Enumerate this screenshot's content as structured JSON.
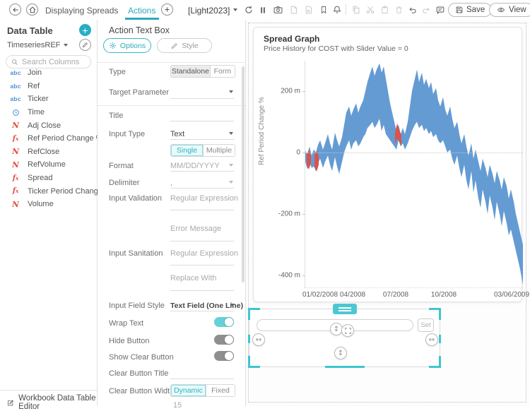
{
  "toolbar": {
    "workbook_title": "Displaying Spreads",
    "active_tab": "Actions",
    "theme": "[Light2023]",
    "save_label": "Save",
    "view_label": "View"
  },
  "sidebar": {
    "title": "Data Table",
    "table_name": "TimeseriesREF",
    "search_placeholder": "Search Columns",
    "columns": [
      {
        "type": "text",
        "label": "Join"
      },
      {
        "type": "text",
        "label": "Ref"
      },
      {
        "type": "text",
        "label": "Ticker"
      },
      {
        "type": "time",
        "label": "Time"
      },
      {
        "type": "numeric",
        "label": "Adj Close"
      },
      {
        "type": "calc",
        "label": "Ref Period Change %"
      },
      {
        "type": "numeric",
        "label": "RefClose"
      },
      {
        "type": "numeric",
        "label": "RefVolume"
      },
      {
        "type": "calc",
        "label": "Spread"
      },
      {
        "type": "calc",
        "label": "Ticker Period Change %"
      },
      {
        "type": "numeric",
        "label": "Volume"
      }
    ],
    "footer_link": "Workbook Data Table Editor"
  },
  "inspector": {
    "title": "Action Text Box",
    "tabs": {
      "options": "Options",
      "style": "Style"
    },
    "fields": {
      "type_label": "Type",
      "type_options": [
        "Standalone",
        "Form"
      ],
      "type_selected": "Standalone",
      "target_parameter_label": "Target Parameter",
      "title_label": "Title",
      "input_type_label": "Input Type",
      "input_type_value": "Text",
      "input_mode_options": [
        "Single",
        "Multiple"
      ],
      "input_mode_selected": "Single",
      "format_label": "Format",
      "format_value": "MM/DD/YYYY",
      "delimiter_label": "Delimiter",
      "delimiter_value": ",",
      "input_validation_label": "Input Validation",
      "regex_placeholder": "Regular Expression",
      "error_message_placeholder": "Error Message",
      "input_sanitation_label": "Input Sanitation",
      "replace_with_placeholder": "Replace With",
      "input_field_style_label": "Input Field Style",
      "input_field_style_value": "Text Field (One Line)",
      "wrap_text_label": "Wrap Text",
      "wrap_text_on": true,
      "hide_button_label": "Hide Button",
      "hide_button_on": false,
      "show_clear_button_label": "Show Clear Button",
      "show_clear_button_on": false,
      "clear_button_title_label": "Clear Button Title",
      "clear_button_width_label": "Clear Button Width",
      "clear_button_width_options": [
        "Dynamic",
        "Fixed"
      ],
      "clear_button_width_selected": "Dynamic",
      "clear_button_width_value": "15"
    },
    "accent_color": "#2fa8bc"
  },
  "canvas": {
    "widget": {
      "set_label": "Set",
      "input_value": "",
      "selection_color": "#3ec6d1"
    }
  },
  "chart_data": {
    "type": "area",
    "title": "Spread Graph",
    "subtitle": "Price History for COST with Slider Value = 0",
    "ylabel": "Ref Period Change %",
    "yticks": [
      "200 m",
      "0",
      "-200 m",
      "-400 m"
    ],
    "ytick_values": [
      200,
      0,
      -200,
      -400
    ],
    "ylim": [
      -445,
      295
    ],
    "xticks": [
      "01/02/2008",
      "04/2008",
      "07/2008",
      "10/2008",
      "03/06/2009"
    ],
    "xtick_pos": [
      21,
      67,
      128,
      196,
      292
    ],
    "grid": "zero-line dotted",
    "legend": "none",
    "series_colors": {
      "positive_band": "#649bd3",
      "negative_band": "#d9534f"
    },
    "band": {
      "x": [
        0,
        3,
        6,
        9,
        12,
        15,
        18,
        21,
        25,
        28,
        32,
        35,
        38,
        42,
        45,
        48,
        52,
        55,
        58,
        62,
        65,
        68,
        72,
        75,
        78,
        82,
        85,
        88,
        92,
        95,
        98,
        101,
        105,
        108,
        111,
        114,
        117,
        120,
        123,
        126,
        129,
        132,
        135,
        138,
        141,
        145,
        148,
        151,
        155,
        158,
        161,
        165,
        168,
        171,
        175,
        178,
        181,
        185,
        188,
        191,
        195,
        198,
        201,
        205,
        208,
        211,
        215,
        218,
        221,
        225,
        228,
        231,
        235,
        238,
        241,
        245,
        248,
        251,
        255,
        258,
        261,
        265,
        268,
        271,
        275,
        278,
        281,
        285,
        288,
        291,
        295,
        298,
        301,
        304,
        308
      ],
      "upper": [
        5,
        -5,
        20,
        -10,
        10,
        0,
        25,
        40,
        10,
        30,
        60,
        30,
        10,
        65,
        40,
        20,
        50,
        90,
        130,
        150,
        120,
        140,
        160,
        130,
        150,
        170,
        200,
        230,
        260,
        280,
        250,
        270,
        290,
        260,
        280,
        240,
        200,
        160,
        130,
        100,
        70,
        90,
        60,
        80,
        60,
        100,
        150,
        200,
        240,
        270,
        230,
        260,
        220,
        240,
        210,
        230,
        190,
        210,
        170,
        150,
        180,
        140,
        120,
        150,
        110,
        80,
        100,
        60,
        30,
        60,
        20,
        -10,
        30,
        -20,
        10,
        -30,
        -60,
        -20,
        -50,
        -80,
        -40,
        -70,
        -100,
        -60,
        -90,
        -120,
        -80,
        -110,
        -150,
        -120,
        -160,
        -200,
        -230,
        -260,
        -300
      ],
      "lower": [
        -30,
        -55,
        -30,
        -50,
        -45,
        -60,
        -35,
        -20,
        -50,
        -30,
        -10,
        -40,
        -60,
        -15,
        -45,
        -70,
        -30,
        0,
        20,
        40,
        10,
        30,
        40,
        20,
        30,
        50,
        60,
        80,
        90,
        100,
        80,
        90,
        110,
        70,
        90,
        60,
        50,
        40,
        30,
        20,
        10,
        40,
        20,
        30,
        10,
        30,
        50,
        70,
        90,
        100,
        80,
        90,
        70,
        80,
        60,
        70,
        50,
        60,
        40,
        30,
        40,
        20,
        0,
        10,
        -20,
        -40,
        -10,
        -50,
        -80,
        -40,
        -90,
        -120,
        -60,
        -130,
        -90,
        -150,
        -180,
        -120,
        -160,
        -200,
        -140,
        -180,
        -220,
        -160,
        -200,
        -240,
        -190,
        -230,
        -270,
        -250,
        -290,
        -320,
        -350,
        -380,
        -430
      ]
    },
    "red_segments": [
      {
        "x": [
          2,
          5,
          8
        ],
        "upper": [
          -5,
          8,
          -8
        ],
        "lower": [
          -40,
          -55,
          -35
        ]
      },
      {
        "x": [
          13,
          16,
          19
        ],
        "upper": [
          -8,
          5,
          -10
        ],
        "lower": [
          -45,
          -62,
          -40
        ]
      },
      {
        "x": [
          127,
          130,
          133,
          136
        ],
        "upper": [
          65,
          95,
          75,
          55
        ],
        "lower": [
          30,
          45,
          35,
          20
        ]
      }
    ]
  }
}
